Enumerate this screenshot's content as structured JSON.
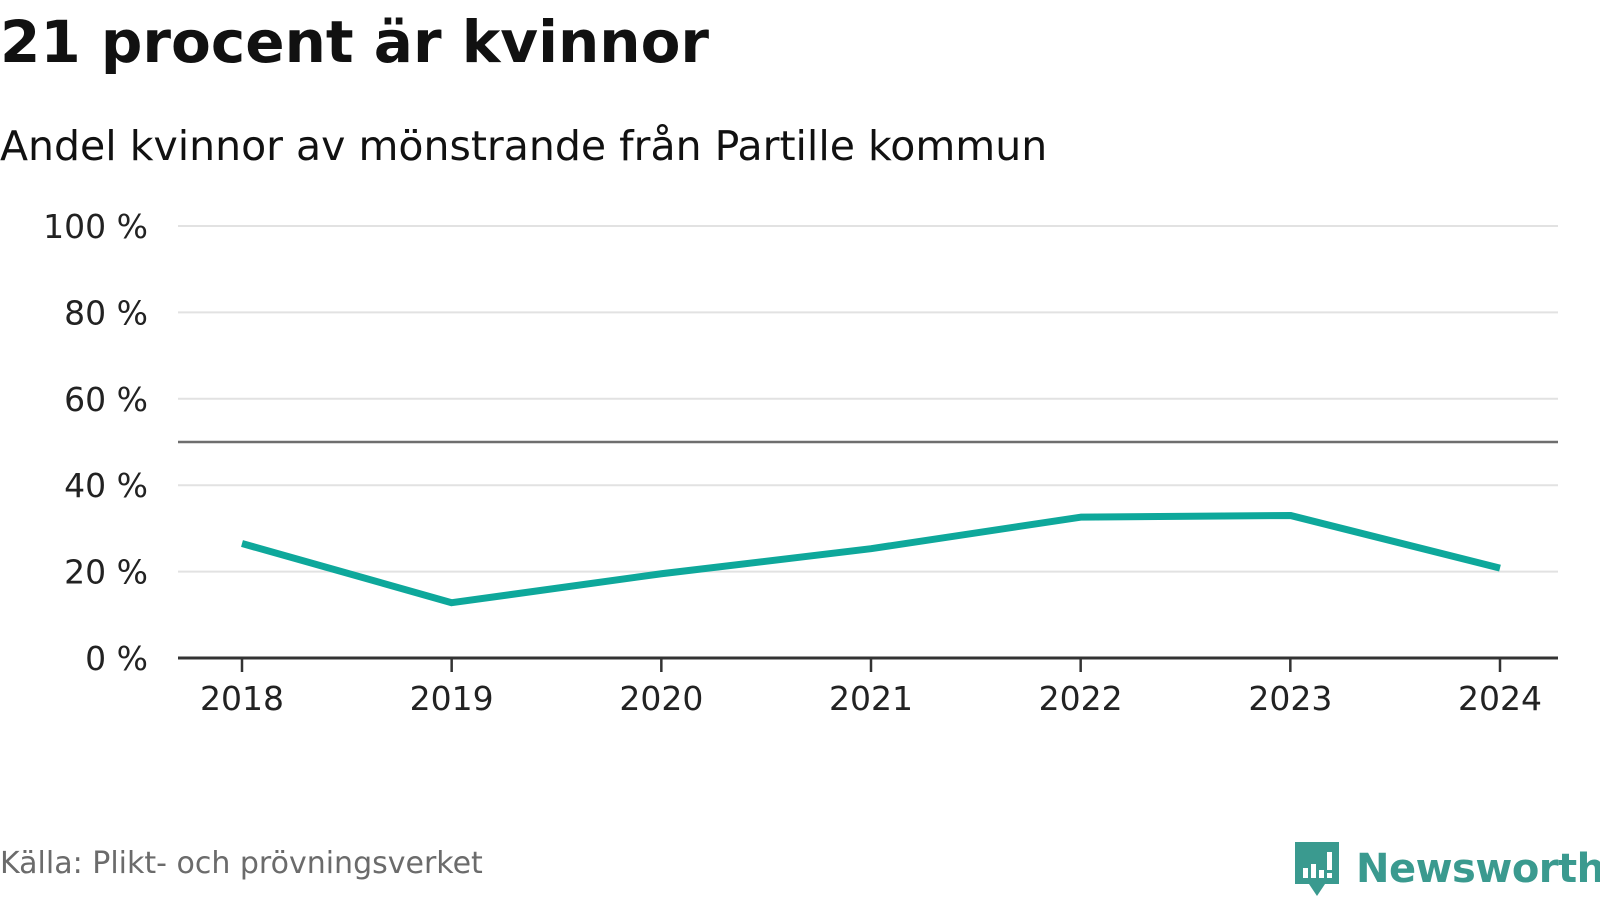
{
  "header": {
    "title": "21 procent är kvinnor",
    "subtitle": "Andel kvinnor av mönstrande från Partille kommun"
  },
  "footer": {
    "source": "Källa: Plikt- och prövningsverket",
    "brand": "Newsworthy",
    "brand_icon": "bar-chart-speech-bubble-icon"
  },
  "colors": {
    "series": "#0ea89b",
    "grid": "#e2e2e2",
    "axis": "#333333",
    "reference": "#6e6e6e",
    "brand": "#3a9a8f"
  },
  "chart_data": {
    "type": "line",
    "title": "21 procent är kvinnor",
    "subtitle": "Andel kvinnor av mönstrande från Partille kommun",
    "xlabel": "",
    "ylabel": "",
    "x": [
      "2018",
      "2019",
      "2020",
      "2021",
      "2022",
      "2023",
      "2024"
    ],
    "series": [
      {
        "name": "Andel kvinnor",
        "values": [
          26.5,
          12.8,
          19.5,
          25.3,
          32.6,
          33.0,
          20.8
        ]
      }
    ],
    "ylim": [
      0,
      100
    ],
    "yticks": [
      0,
      20,
      40,
      60,
      80,
      100
    ],
    "ytick_labels": [
      "0 %",
      "20 %",
      "40 %",
      "60 %",
      "80 %",
      "100 %"
    ],
    "reference_line": 50,
    "grid": true,
    "legend": "none"
  }
}
